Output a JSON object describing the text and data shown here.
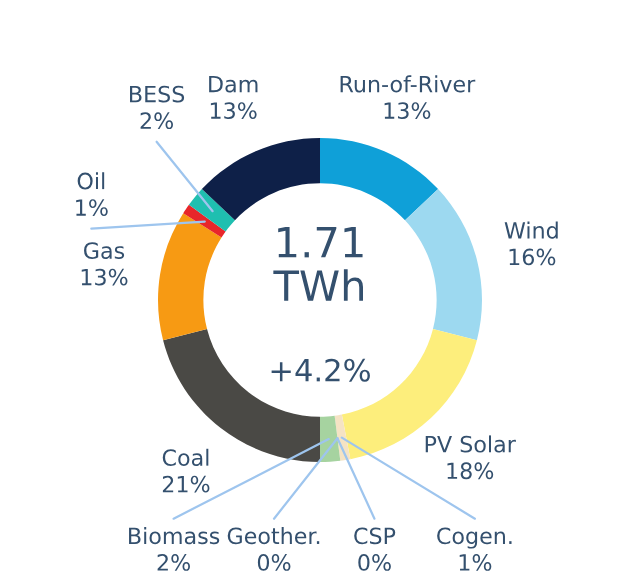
{
  "chart_data": {
    "type": "donut",
    "categories": [
      "Run-of-River",
      "Wind",
      "PV Solar",
      "Cogen.",
      "CSP",
      "Geother.",
      "Biomass",
      "Coal",
      "Gas",
      "Oil",
      "BESS",
      "Dam"
    ],
    "values": [
      13,
      16,
      18,
      1,
      0,
      0,
      2,
      21,
      13,
      1,
      2,
      13
    ],
    "colors": [
      "#0fa0d8",
      "#9dd9f0",
      "#fdee7c",
      "#f5e3c4",
      "#c8781e",
      "#8fbfe0",
      "#a6d3a0",
      "#4a4945",
      "#f79a13",
      "#e8262a",
      "#1fbfb0",
      "#0e2048"
    ],
    "value_labels": [
      "13%",
      "16%",
      "18%",
      "1%",
      "0%",
      "0%",
      "2%",
      "21%",
      "13%",
      "1%",
      "2%",
      "13%"
    ],
    "annotations": [
      "1.71\nTWh",
      "+4.2%"
    ],
    "legend": false
  }
}
